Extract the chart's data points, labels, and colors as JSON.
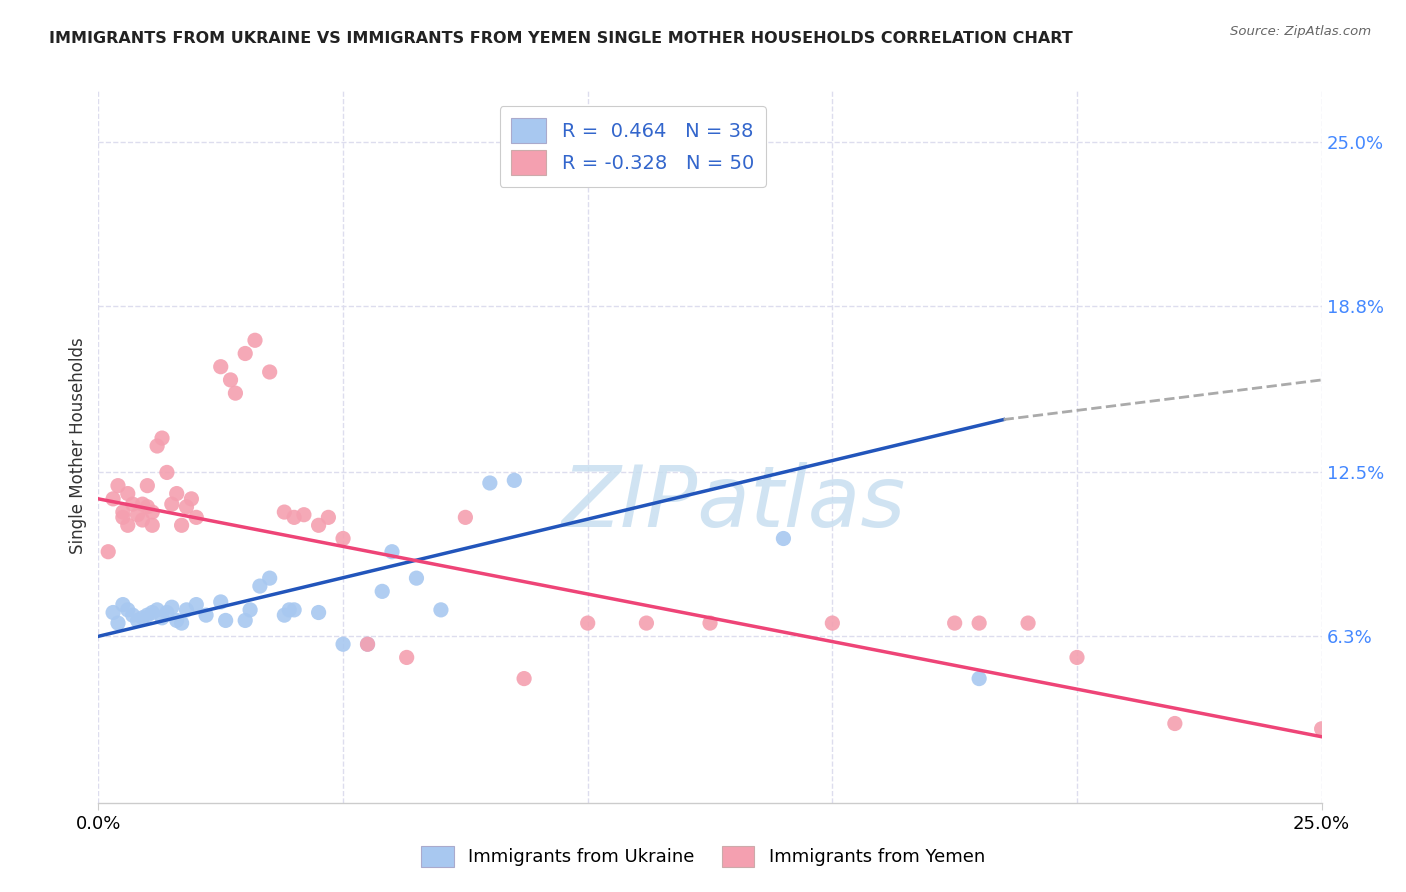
{
  "title": "IMMIGRANTS FROM UKRAINE VS IMMIGRANTS FROM YEMEN SINGLE MOTHER HOUSEHOLDS CORRELATION CHART",
  "source": "Source: ZipAtlas.com",
  "ylabel": "Single Mother Households",
  "bottom_legend": [
    "Immigrants from Ukraine",
    "Immigrants from Yemen"
  ],
  "ukraine_color": "#a8c8f0",
  "ukraine_line_color": "#2255bb",
  "yemen_color": "#f4a0b0",
  "yemen_line_color": "#ee4477",
  "ukraine_scatter": [
    [
      0.3,
      7.2
    ],
    [
      0.4,
      6.8
    ],
    [
      0.5,
      7.5
    ],
    [
      0.6,
      7.3
    ],
    [
      0.7,
      7.1
    ],
    [
      0.8,
      6.9
    ],
    [
      0.9,
      7.0
    ],
    [
      1.0,
      7.1
    ],
    [
      1.1,
      7.2
    ],
    [
      1.2,
      7.3
    ],
    [
      1.3,
      7.0
    ],
    [
      1.4,
      7.2
    ],
    [
      1.5,
      7.4
    ],
    [
      1.6,
      6.9
    ],
    [
      1.7,
      6.8
    ],
    [
      1.8,
      7.3
    ],
    [
      2.0,
      7.5
    ],
    [
      2.2,
      7.1
    ],
    [
      2.5,
      7.6
    ],
    [
      2.6,
      6.9
    ],
    [
      3.0,
      6.9
    ],
    [
      3.1,
      7.3
    ],
    [
      3.3,
      8.2
    ],
    [
      3.5,
      8.5
    ],
    [
      3.8,
      7.1
    ],
    [
      3.9,
      7.3
    ],
    [
      4.0,
      7.3
    ],
    [
      4.5,
      7.2
    ],
    [
      5.0,
      6.0
    ],
    [
      5.5,
      6.0
    ],
    [
      5.8,
      8.0
    ],
    [
      6.0,
      9.5
    ],
    [
      6.5,
      8.5
    ],
    [
      7.0,
      7.3
    ],
    [
      8.0,
      12.1
    ],
    [
      8.5,
      12.2
    ],
    [
      14.0,
      10.0
    ],
    [
      18.0,
      4.7
    ]
  ],
  "yemen_scatter": [
    [
      0.2,
      9.5
    ],
    [
      0.3,
      11.5
    ],
    [
      0.4,
      12.0
    ],
    [
      0.5,
      11.0
    ],
    [
      0.5,
      10.8
    ],
    [
      0.6,
      10.5
    ],
    [
      0.6,
      11.7
    ],
    [
      0.7,
      11.3
    ],
    [
      0.8,
      10.9
    ],
    [
      0.9,
      10.7
    ],
    [
      0.9,
      11.3
    ],
    [
      1.0,
      12.0
    ],
    [
      1.0,
      11.2
    ],
    [
      1.1,
      11.0
    ],
    [
      1.1,
      10.5
    ],
    [
      1.2,
      13.5
    ],
    [
      1.3,
      13.8
    ],
    [
      1.4,
      12.5
    ],
    [
      1.5,
      11.3
    ],
    [
      1.6,
      11.7
    ],
    [
      1.7,
      10.5
    ],
    [
      1.8,
      11.2
    ],
    [
      1.9,
      11.5
    ],
    [
      2.0,
      10.8
    ],
    [
      2.5,
      16.5
    ],
    [
      2.7,
      16.0
    ],
    [
      2.8,
      15.5
    ],
    [
      3.0,
      17.0
    ],
    [
      3.2,
      17.5
    ],
    [
      3.5,
      16.3
    ],
    [
      3.8,
      11.0
    ],
    [
      4.0,
      10.8
    ],
    [
      4.2,
      10.9
    ],
    [
      4.5,
      10.5
    ],
    [
      4.7,
      10.8
    ],
    [
      5.0,
      10.0
    ],
    [
      5.5,
      6.0
    ],
    [
      6.3,
      5.5
    ],
    [
      7.5,
      10.8
    ],
    [
      8.7,
      4.7
    ],
    [
      10.0,
      6.8
    ],
    [
      11.2,
      6.8
    ],
    [
      12.5,
      6.8
    ],
    [
      15.0,
      6.8
    ],
    [
      17.5,
      6.8
    ],
    [
      18.0,
      6.8
    ],
    [
      19.0,
      6.8
    ],
    [
      20.0,
      5.5
    ],
    [
      22.0,
      3.0
    ],
    [
      25.0,
      2.8
    ]
  ],
  "xlim": [
    0.0,
    25.0
  ],
  "ylim": [
    0.0,
    27.0
  ],
  "y_ticks": [
    6.3,
    12.5,
    18.8,
    25.0
  ],
  "y_tick_labels": [
    "6.3%",
    "12.5%",
    "18.8%",
    "25.0%"
  ],
  "x_ticks": [
    0.0,
    25.0
  ],
  "x_tick_labels": [
    "0.0%",
    "25.0%"
  ],
  "ukraine_trendline": [
    [
      0.0,
      6.3
    ],
    [
      18.5,
      14.5
    ]
  ],
  "ukraine_trendline_ext": [
    [
      18.5,
      14.5
    ],
    [
      25.0,
      16.0
    ]
  ],
  "yemen_trendline": [
    [
      0.0,
      11.5
    ],
    [
      25.0,
      2.5
    ]
  ],
  "background_color": "#ffffff",
  "grid_color": "#ddddee",
  "watermark": "ZIPatlas",
  "watermark_color": "#c8dff0"
}
